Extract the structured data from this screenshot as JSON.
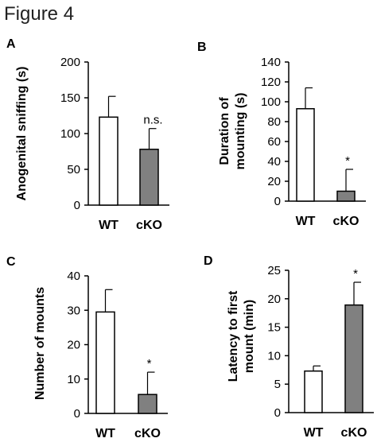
{
  "figure_title": "Figure 4",
  "chart_data": [
    {
      "panel": "A",
      "type": "bar",
      "ylabel": "Anogenital sniffing (s)",
      "categories": [
        "WT",
        "cKO"
      ],
      "values": [
        123,
        78
      ],
      "errors": [
        29,
        29
      ],
      "annotations": [
        "",
        "n.s."
      ],
      "colors": [
        "#ffffff",
        "#808080"
      ],
      "ylim": [
        0,
        200
      ],
      "yticks": [
        0,
        50,
        100,
        150,
        200
      ]
    },
    {
      "panel": "B",
      "type": "bar",
      "ylabel": "Duration of mounting (s)",
      "categories": [
        "WT",
        "cKO"
      ],
      "values": [
        93,
        10
      ],
      "errors": [
        21,
        22
      ],
      "annotations": [
        "",
        "*"
      ],
      "colors": [
        "#ffffff",
        "#808080"
      ],
      "ylim": [
        0,
        140
      ],
      "yticks": [
        0,
        20,
        40,
        60,
        80,
        100,
        120,
        140
      ]
    },
    {
      "panel": "C",
      "type": "bar",
      "ylabel": "Number of mounts",
      "categories": [
        "WT",
        "cKO"
      ],
      "values": [
        29.5,
        5.5
      ],
      "errors": [
        6.5,
        6.5
      ],
      "annotations": [
        "",
        "*"
      ],
      "colors": [
        "#ffffff",
        "#808080"
      ],
      "ylim": [
        0,
        40
      ],
      "yticks": [
        0,
        10,
        20,
        30,
        40
      ]
    },
    {
      "panel": "D",
      "type": "bar",
      "ylabel": "Latency to first mount (min)",
      "categories": [
        "WT",
        "cKO"
      ],
      "values": [
        7.3,
        18.9
      ],
      "errors": [
        0.9,
        4
      ],
      "annotations": [
        "",
        "*"
      ],
      "colors": [
        "#ffffff",
        "#808080"
      ],
      "ylim": [
        0,
        25
      ],
      "yticks": [
        0,
        5,
        10,
        15,
        20,
        25
      ]
    }
  ]
}
